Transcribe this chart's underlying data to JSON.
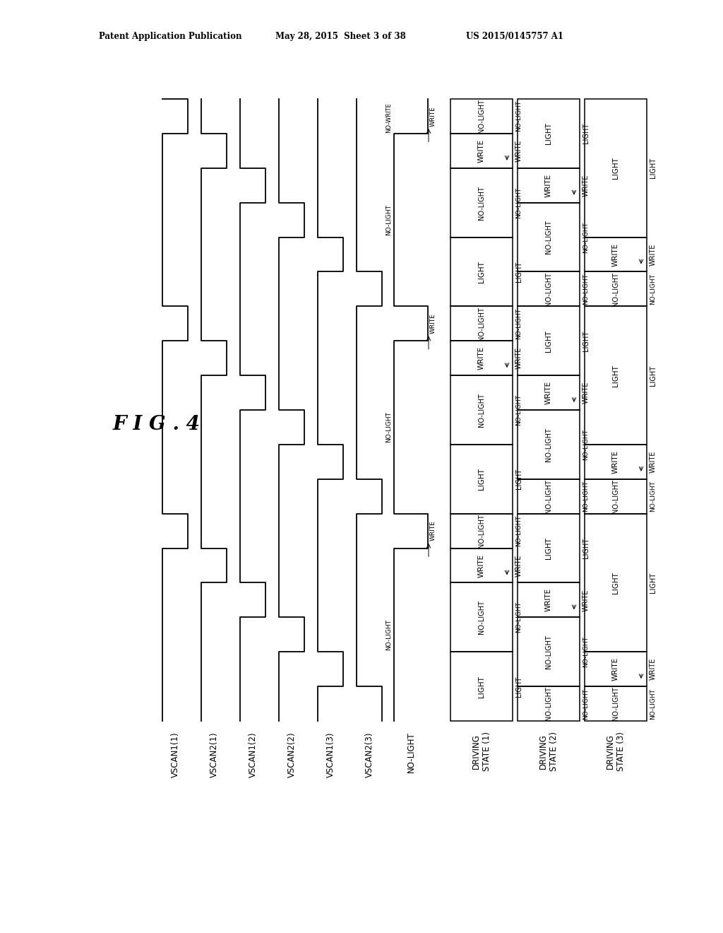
{
  "header_left": "Patent Application Publication",
  "header_center": "May 28, 2015  Sheet 3 of 38",
  "header_right": "US 2015/0145757 A1",
  "fig_label": "F I G . 4",
  "background_color": "#ffffff",
  "line_color": "#000000",
  "signal_names": [
    "VSCAN1(1)",
    "VSCAN2(1)",
    "VSCAN1(2)",
    "VSCAN2(2)",
    "VSCAN1(3)",
    "VSCAN2(3)",
    "NO-LIGHT",
    "DRIVING\nSTATE (1)",
    "DRIVING\nSTATE (2)",
    "DRIVING\nSTATE (3)"
  ],
  "total_frames": 3,
  "units_per_frame": 6,
  "total_units": 18,
  "vscan_pulse_starts": [
    0,
    1,
    2,
    3,
    4,
    5
  ],
  "no_light_pattern": [
    [
      0,
      1,
      true
    ],
    [
      1,
      6,
      false
    ],
    [
      6,
      7,
      true
    ],
    [
      7,
      12,
      false
    ],
    [
      12,
      13,
      true
    ],
    [
      13,
      18,
      false
    ]
  ],
  "ds1_segments": [
    [
      0,
      1,
      "NO-LIGHT"
    ],
    [
      1,
      2,
      "WRITE"
    ],
    [
      2,
      4,
      "NO-LIGHT"
    ],
    [
      4,
      6,
      "LIGHT"
    ],
    [
      6,
      7,
      "NO-LIGHT"
    ],
    [
      7,
      8,
      "WRITE"
    ],
    [
      8,
      10,
      "NO-LIGHT"
    ],
    [
      10,
      12,
      "LIGHT"
    ],
    [
      12,
      13,
      "NO-LIGHT"
    ],
    [
      13,
      14,
      "WRITE"
    ],
    [
      14,
      16,
      "NO-LIGHT"
    ],
    [
      16,
      18,
      "LIGHT"
    ]
  ],
  "ds2_segments": [
    [
      0,
      2,
      "LIGHT"
    ],
    [
      2,
      3,
      "WRITE"
    ],
    [
      3,
      5,
      "NO-LIGHT"
    ],
    [
      5,
      6,
      "NO-LIGHT"
    ],
    [
      6,
      8,
      "LIGHT"
    ],
    [
      8,
      9,
      "WRITE"
    ],
    [
      9,
      11,
      "NO-LIGHT"
    ],
    [
      11,
      12,
      "NO-LIGHT"
    ],
    [
      12,
      14,
      "LIGHT"
    ],
    [
      14,
      15,
      "WRITE"
    ],
    [
      15,
      17,
      "NO-LIGHT"
    ],
    [
      17,
      18,
      "NO-LIGHT"
    ]
  ],
  "ds3_segments": [
    [
      0,
      4,
      "LIGHT"
    ],
    [
      4,
      5,
      "WRITE"
    ],
    [
      5,
      6,
      "NO-LIGHT"
    ],
    [
      6,
      10,
      "LIGHT"
    ],
    [
      10,
      11,
      "WRITE"
    ],
    [
      11,
      12,
      "NO-LIGHT"
    ],
    [
      12,
      16,
      "LIGHT"
    ],
    [
      16,
      17,
      "WRITE"
    ],
    [
      17,
      18,
      "NO-LIGHT"
    ]
  ]
}
